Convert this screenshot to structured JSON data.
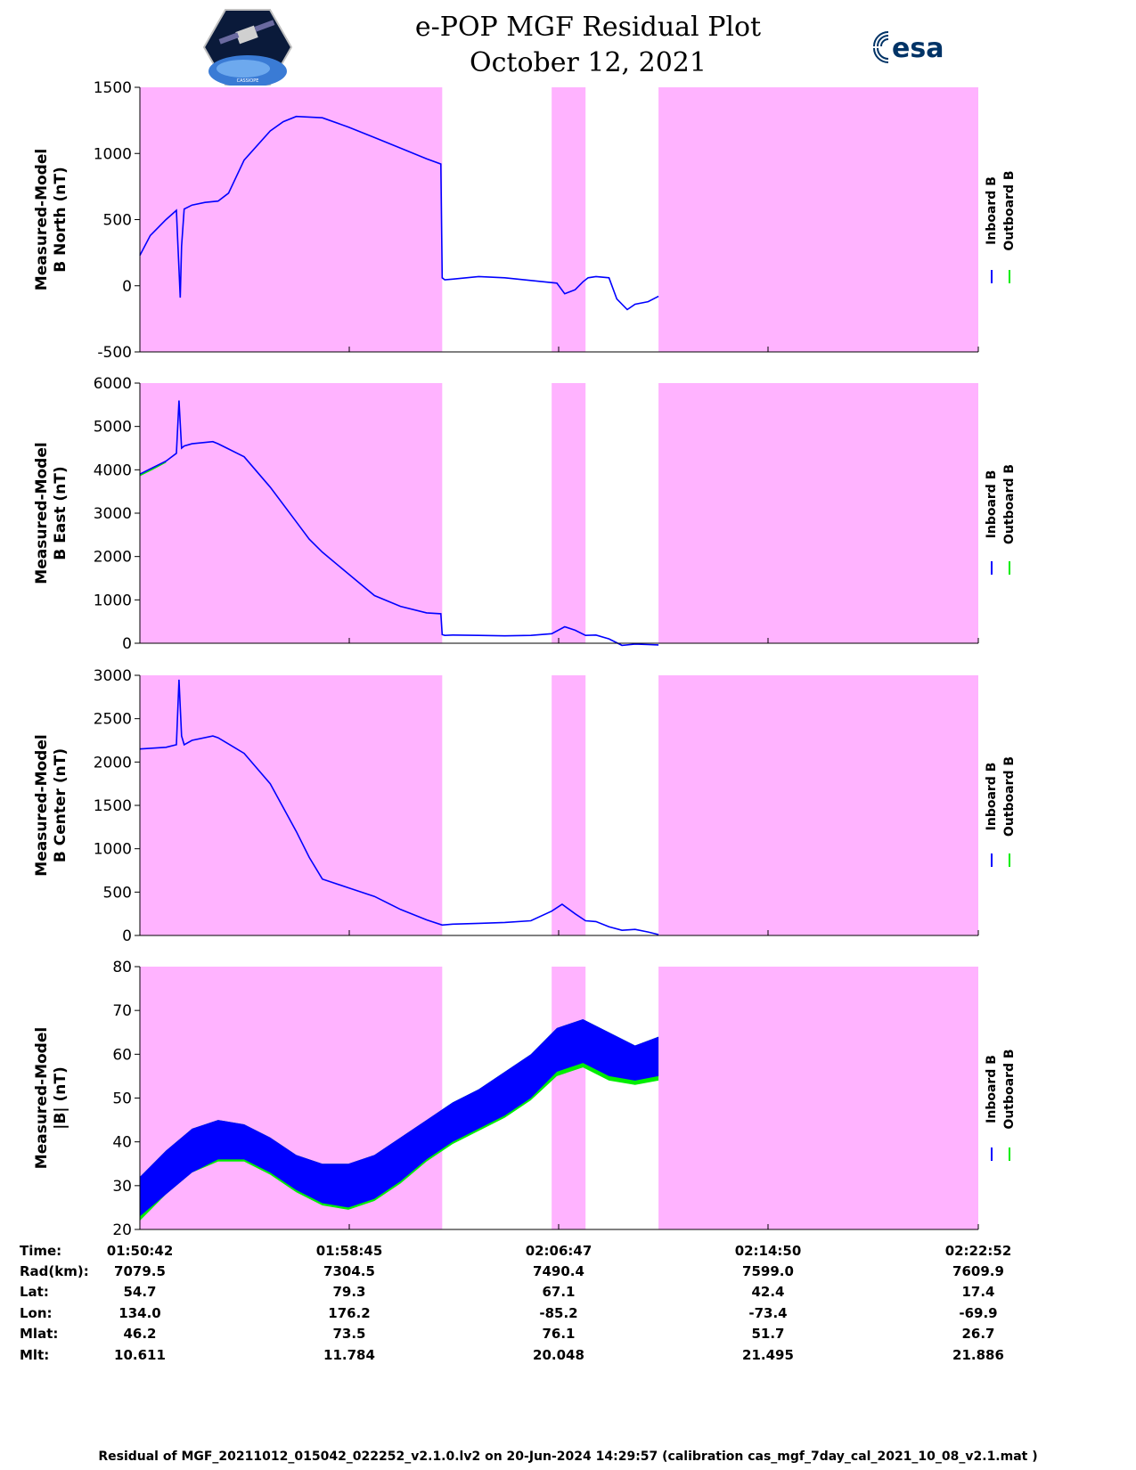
{
  "header": {
    "title_line1": "e-POP MGF Residual Plot",
    "title_line2": "October 12, 2021",
    "logo_left": "cassiope-mission-logo",
    "logo_left_text": "CASSIOPE",
    "logo_right_text": "esa"
  },
  "colors": {
    "inboard": "#0000ff",
    "outboard": "#00ee00",
    "shading": "#ffb3ff"
  },
  "legend": {
    "inboard": "Inboard B",
    "outboard": "Outboard B"
  },
  "ephemeris": {
    "labels": [
      "Time:",
      "Rad(km):",
      "Lat:",
      "Lon:",
      "Mlat:",
      "Mlt:"
    ],
    "columns": [
      [
        "01:50:42",
        "7079.5",
        "54.7",
        "134.0",
        "46.2",
        "10.611"
      ],
      [
        "01:58:45",
        "7304.5",
        "79.3",
        "176.2",
        "73.5",
        "11.784"
      ],
      [
        "02:06:47",
        "7490.4",
        "67.1",
        "-85.2",
        "76.1",
        "20.048"
      ],
      [
        "02:14:50",
        "7599.0",
        "42.4",
        "-73.4",
        "51.7",
        "21.495"
      ],
      [
        "02:22:52",
        "7609.9",
        "17.4",
        "-69.9",
        "26.7",
        "21.886"
      ]
    ]
  },
  "footer_text": "Residual of MGF_20211012_015042_022252_v2.1.0.lv2 on 20-Jun-2024 14:29:57 (calibration cas_mgf_7day_cal_2021_10_08_v2.1.mat )",
  "chart_data": [
    {
      "type": "line",
      "ylabel": [
        "Measured-Model",
        "B North (nT)"
      ],
      "ylim": [
        -500,
        1500
      ],
      "yticks": [
        -500,
        0,
        500,
        1000,
        1500
      ],
      "x_unit": "minutes since 01:50:42",
      "xlim": [
        0,
        32.17
      ],
      "shaded_intervals": [
        [
          0,
          11.6
        ],
        [
          15.8,
          17.1
        ],
        [
          19.9,
          32.17
        ]
      ],
      "series": [
        {
          "name": "Inboard B",
          "x": [
            0,
            0.4,
            1,
            1.4,
            1.45,
            1.55,
            1.6,
            1.7,
            2,
            2.5,
            3,
            3.4,
            4,
            5,
            5.5,
            6,
            7,
            8,
            9,
            10,
            11,
            11.55,
            11.6,
            11.7,
            12,
            13,
            14,
            15,
            15.5,
            16,
            16.3,
            16.7,
            17,
            17.2,
            17.5,
            18,
            18.3,
            18.7,
            19,
            19.5,
            19.9
          ],
          "y": [
            230,
            380,
            500,
            570,
            350,
            -90,
            300,
            580,
            610,
            630,
            640,
            700,
            950,
            1170,
            1240,
            1280,
            1270,
            1200,
            1120,
            1040,
            960,
            920,
            60,
            45,
            50,
            70,
            60,
            40,
            30,
            20,
            -60,
            -30,
            30,
            60,
            70,
            60,
            -100,
            -180,
            -140,
            -120,
            -80
          ]
        }
      ]
    },
    {
      "type": "line",
      "ylabel": [
        "Measured-Model",
        "B East (nT)"
      ],
      "ylim": [
        0,
        6000
      ],
      "yticks": [
        0,
        1000,
        2000,
        3000,
        4000,
        5000,
        6000
      ],
      "xlim": [
        0,
        32.17
      ],
      "shaded_intervals": [
        [
          0,
          11.6
        ],
        [
          15.8,
          17.1
        ],
        [
          19.9,
          32.17
        ]
      ],
      "series": [
        {
          "name": "Inboard B",
          "x": [
            0,
            0.5,
            1,
            1.4,
            1.5,
            1.6,
            1.7,
            2,
            2.8,
            3,
            4,
            5,
            6,
            6.5,
            7,
            8,
            9,
            10,
            11,
            11.55,
            11.6,
            11.7,
            12,
            13,
            14,
            15,
            15.8,
            16.3,
            16.7,
            17.1,
            17.5,
            18,
            18.5,
            19,
            19.5,
            19.9
          ],
          "y": [
            3900,
            4050,
            4200,
            4380,
            5600,
            4500,
            4550,
            4600,
            4650,
            4600,
            4300,
            3600,
            2800,
            2400,
            2100,
            1600,
            1100,
            850,
            700,
            680,
            200,
            180,
            190,
            180,
            170,
            180,
            220,
            380,
            300,
            180,
            190,
            100,
            -50,
            -20,
            -30,
            -40
          ]
        },
        {
          "name": "Outboard B",
          "x": [
            0,
            0.5,
            1
          ],
          "y": [
            3870,
            4020,
            4180
          ]
        }
      ]
    },
    {
      "type": "line",
      "ylabel": [
        "Measured-Model",
        "B Center (nT)"
      ],
      "ylim": [
        0,
        3000
      ],
      "yticks": [
        0,
        500,
        1000,
        1500,
        2000,
        2500,
        3000
      ],
      "xlim": [
        0,
        32.17
      ],
      "shaded_intervals": [
        [
          0,
          11.6
        ],
        [
          15.8,
          17.1
        ],
        [
          19.9,
          32.17
        ]
      ],
      "series": [
        {
          "name": "Inboard B",
          "x": [
            0,
            1,
            1.4,
            1.5,
            1.6,
            1.7,
            2,
            2.8,
            3,
            4,
            5,
            6,
            6.5,
            7,
            8,
            9,
            10,
            11,
            11.6,
            12,
            13,
            14,
            15,
            15.8,
            16.2,
            16.7,
            17.1,
            17.5,
            18,
            18.5,
            19,
            19.5,
            19.9
          ],
          "y": [
            2150,
            2170,
            2200,
            2950,
            2300,
            2200,
            2250,
            2300,
            2280,
            2100,
            1750,
            1200,
            900,
            650,
            550,
            450,
            300,
            180,
            120,
            130,
            140,
            150,
            170,
            280,
            360,
            250,
            170,
            160,
            100,
            60,
            70,
            40,
            10
          ]
        }
      ]
    },
    {
      "type": "area",
      "ylabel": [
        "Measured-Model",
        "|B| (nT)"
      ],
      "ylim": [
        20,
        80
      ],
      "yticks": [
        20,
        30,
        40,
        50,
        60,
        70,
        80
      ],
      "xlim": [
        0,
        32.17
      ],
      "shaded_intervals": [
        [
          0,
          11.6
        ],
        [
          15.8,
          17.1
        ],
        [
          19.9,
          32.17
        ]
      ],
      "series": [
        {
          "name": "Inboard B upper",
          "x": [
            0,
            1,
            2,
            3,
            4,
            5,
            6,
            7,
            8,
            9,
            10,
            11,
            12,
            13,
            14,
            15,
            16,
            17,
            18,
            19,
            19.9
          ],
          "y": [
            32,
            38,
            43,
            45,
            44,
            41,
            37,
            35,
            35,
            37,
            41,
            45,
            49,
            52,
            56,
            60,
            66,
            68,
            65,
            62,
            64
          ]
        },
        {
          "name": "Inboard B lower",
          "x": [
            0,
            1,
            2,
            3,
            4,
            5,
            6,
            7,
            8,
            9,
            10,
            11,
            12,
            13,
            14,
            15,
            16,
            17,
            18,
            19,
            19.9
          ],
          "y": [
            23,
            28,
            33,
            36,
            36,
            33,
            29,
            26,
            25,
            27,
            31,
            36,
            40,
            43,
            46,
            50,
            56,
            58,
            55,
            54,
            55
          ]
        },
        {
          "name": "Outboard B lower",
          "x": [
            0,
            1,
            2,
            3,
            4,
            5,
            6,
            7,
            8,
            9,
            10,
            11,
            12,
            13,
            14,
            15,
            16,
            17,
            18,
            19,
            19.9
          ],
          "y": [
            22,
            28,
            33,
            35.5,
            35.5,
            32.5,
            28.5,
            25.5,
            24.5,
            26.5,
            30.5,
            35.5,
            39.5,
            42.5,
            45.5,
            49.5,
            55,
            57,
            54,
            53,
            54
          ]
        }
      ]
    }
  ]
}
